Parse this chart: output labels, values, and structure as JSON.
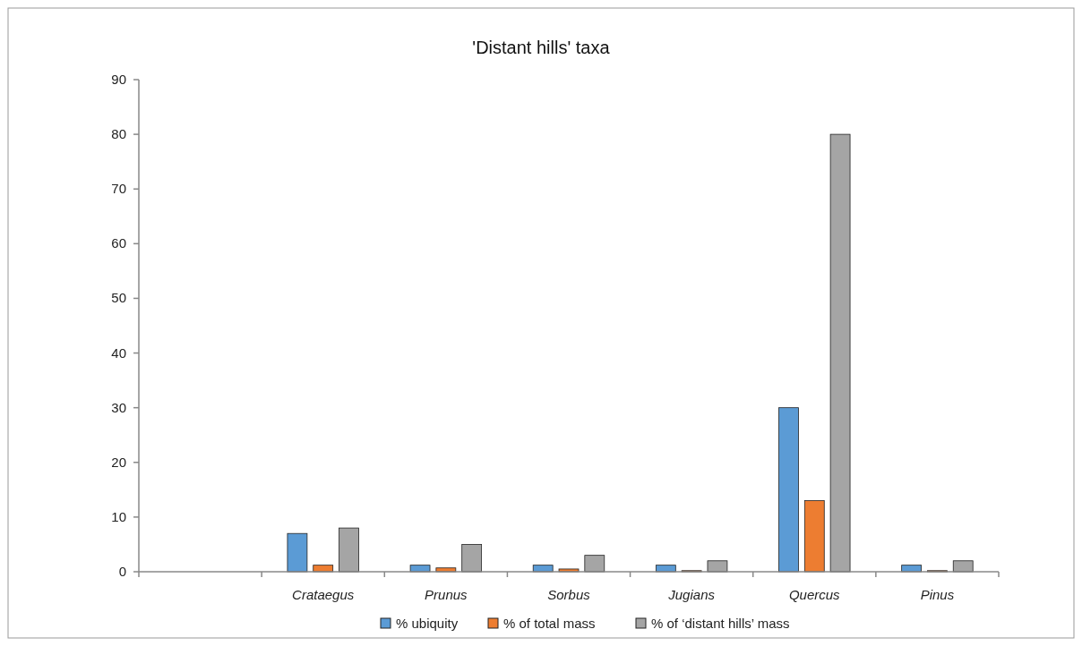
{
  "chart_data": {
    "type": "bar",
    "title": "'Distant hills' taxa",
    "categories": [
      null,
      "Crataegus",
      "Prunus",
      "Sorbus",
      "Jugians",
      "Quercus",
      "Pinus"
    ],
    "series": [
      {
        "name": "% ubiquity",
        "color": "#5b9bd5",
        "values": [
          null,
          7,
          1.2,
          1.2,
          1.2,
          30,
          1.2
        ]
      },
      {
        "name": "% of total mass",
        "color": "#ed7d31",
        "values": [
          null,
          1.2,
          0.7,
          0.5,
          0.2,
          13,
          0.2
        ]
      },
      {
        "name": "% of ‘distant hills’ mass",
        "color": "#a5a5a5",
        "values": [
          null,
          8,
          5,
          3,
          2,
          80,
          2
        ]
      }
    ],
    "ylim": [
      0,
      90
    ],
    "yticks": [
      0,
      10,
      20,
      30,
      40,
      50,
      60,
      70,
      80,
      90
    ],
    "grid": false,
    "legend": "bottom"
  }
}
